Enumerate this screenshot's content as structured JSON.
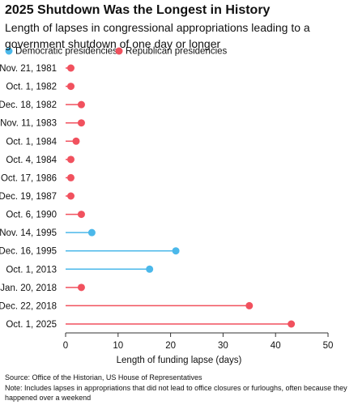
{
  "chart_data": {
    "type": "lollipop",
    "title": "2025 Shutdown Was the Longest in History",
    "subtitle": "Length of lapses in congressional appropriations leading to a government shutdown of one day or longer",
    "categories": [
      "Nov. 21, 1981",
      "Oct. 1, 1982",
      "Dec. 18, 1982",
      "Nov. 11, 1983",
      "Oct. 1, 1984",
      "Oct. 4, 1984",
      "Oct. 17, 1986",
      "Dec. 19, 1987",
      "Oct. 6, 1990",
      "Nov. 14, 1995",
      "Dec. 16, 1995",
      "Oct. 1, 2013",
      "Jan. 20, 2018",
      "Dec. 22, 2018",
      "Oct. 1, 2025"
    ],
    "series": [
      {
        "name": "Democratic presidencies",
        "color": "#4bb8ea",
        "values": [
          null,
          null,
          null,
          null,
          null,
          null,
          null,
          null,
          null,
          5,
          21,
          16,
          null,
          null,
          null
        ]
      },
      {
        "name": "Republican presidencies",
        "color": "#f1515e",
        "values": [
          1,
          1,
          3,
          3,
          2,
          1,
          1,
          1,
          3,
          null,
          null,
          null,
          3,
          35,
          43
        ]
      }
    ],
    "xlim": [
      0,
      50
    ],
    "xticks": [
      0,
      10,
      20,
      30,
      40,
      50
    ],
    "x_label": "Length of funding lapse (days)",
    "source": "Source: Office of the Historian, US House of Representatives",
    "note": "Note: Includes lapses in appropriations that did not lead to office closures or furloughs, often because they happened over a weekend"
  }
}
